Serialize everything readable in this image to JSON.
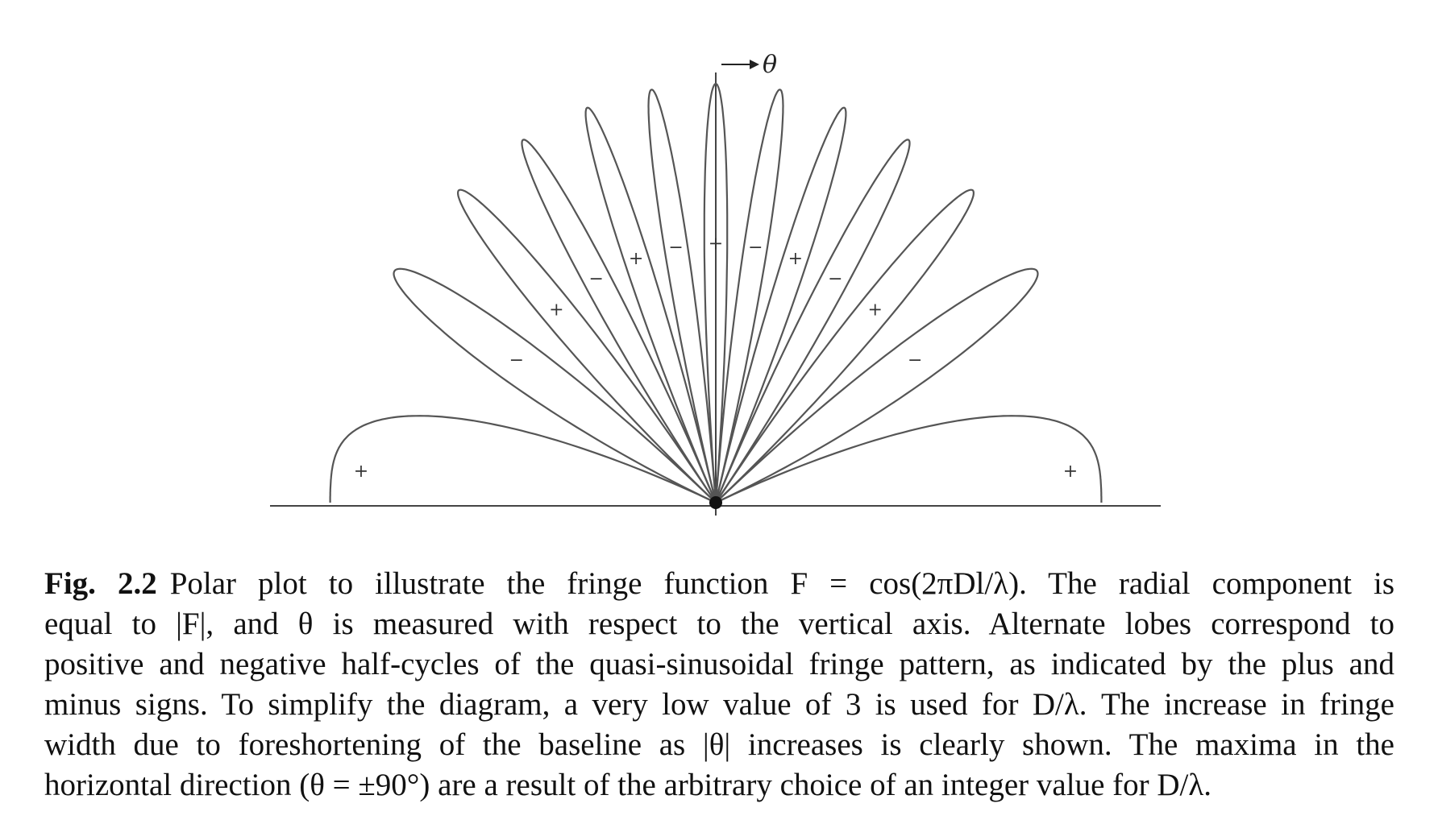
{
  "figure": {
    "theta_label": "θ",
    "d_over_lambda": 3,
    "positive_sign": "+",
    "negative_sign": "−"
  },
  "caption": {
    "label": "Fig. 2.2",
    "lines": [
      "Polar plot to illustrate the fringe function F = cos(2πDl/λ). The radial component is",
      "equal to |F|, and θ is measured with respect to the vertical axis. Alternate lobes correspond to",
      "positive and negative half-cycles of the quasi-sinusoidal fringe pattern, as indicated by the plus and",
      "minus signs. To simplify the diagram, a very low value of 3 is used for D/λ. The increase in fringe",
      "width due to foreshortening of the baseline as |θ| increases is clearly shown. The maxima in the",
      "horizontal direction (θ = ±90°) are a result of the arbitrary choice of an integer value for D/λ."
    ]
  }
}
